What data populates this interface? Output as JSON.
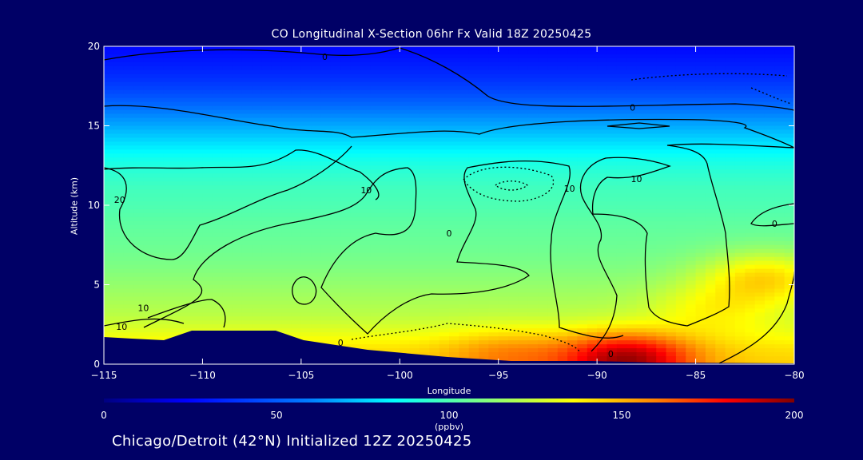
{
  "chart_data": {
    "type": "heatmap",
    "title": "CO Longitudinal X-Section 06hr  Fx Valid 18Z 20250425",
    "xlabel": "Longitude",
    "ylabel": "Altitude (km)",
    "xlim": [
      -115,
      -80
    ],
    "ylim": [
      0,
      20
    ],
    "x_ticks": [
      -115,
      -110,
      -105,
      -100,
      -95,
      -90,
      -85,
      -80
    ],
    "x_tick_labels": [
      "−115",
      "−110",
      "−105",
      "−100",
      "−95",
      "−90",
      "−85",
      "−80"
    ],
    "y_ticks": [
      0,
      5,
      10,
      15,
      20
    ],
    "colorbar": {
      "min": 0,
      "max": 200,
      "ticks": [
        0,
        50,
        100,
        150,
        200
      ],
      "unit": "(ppbv)",
      "colors": [
        "#000080",
        "#0000ff",
        "#0080ff",
        "#00ffff",
        "#80ff80",
        "#ffff00",
        "#ff8000",
        "#ff0000",
        "#800000"
      ]
    },
    "altitudes_km": [
      0,
      1,
      2,
      3,
      4,
      5,
      6,
      7,
      8,
      9,
      10,
      11,
      12,
      13,
      14,
      15,
      16,
      17,
      18,
      19,
      20
    ],
    "co_ppbv_by_altitude": [
      135,
      130,
      120,
      112,
      108,
      104,
      100,
      97,
      95,
      93,
      90,
      88,
      84,
      78,
      68,
      58,
      48,
      40,
      34,
      30,
      26
    ],
    "hotspots": [
      {
        "longitude": -88.5,
        "altitude_km": 0.3,
        "co_ppbv": 195
      },
      {
        "longitude": -94.5,
        "altitude_km": 0.6,
        "co_ppbv": 150
      },
      {
        "longitude": -81.5,
        "altitude_km": 5.5,
        "co_ppbv": 132
      },
      {
        "longitude": -84.0,
        "altitude_km": 3.5,
        "co_ppbv": 125
      }
    ],
    "contour_labels": [
      {
        "text": "0",
        "longitude": -103.8,
        "altitude_km": 19.3
      },
      {
        "text": "0",
        "longitude": -88.2,
        "altitude_km": 16.1
      },
      {
        "text": "0",
        "longitude": -89.3,
        "altitude_km": 0.6
      },
      {
        "text": "0",
        "longitude": -97.5,
        "altitude_km": 8.2
      },
      {
        "text": "0",
        "longitude": -103.0,
        "altitude_km": 1.3
      },
      {
        "text": "0",
        "longitude": -81.0,
        "altitude_km": 8.8
      },
      {
        "text": "10",
        "longitude": -114.1,
        "altitude_km": 2.3
      },
      {
        "text": "10",
        "longitude": -113.0,
        "altitude_km": 3.5
      },
      {
        "text": "10",
        "longitude": -101.7,
        "altitude_km": 10.9
      },
      {
        "text": "10",
        "longitude": -91.4,
        "altitude_km": 11.0
      },
      {
        "text": "10",
        "longitude": -88.0,
        "altitude_km": 11.6
      },
      {
        "text": "20",
        "longitude": -114.2,
        "altitude_km": 10.3
      }
    ]
  },
  "footer": "Chicago/Detroit (42°N) Initialized 12Z 20250425"
}
